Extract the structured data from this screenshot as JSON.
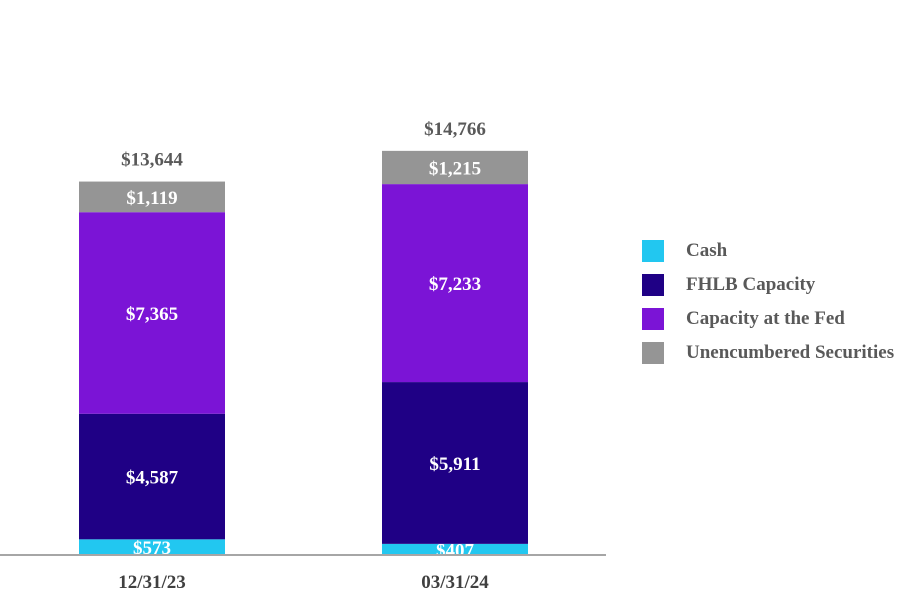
{
  "chart_data": {
    "type": "bar",
    "stacked": true,
    "title": "",
    "xlabel": "",
    "ylabel": "",
    "ylim": [
      0,
      16000
    ],
    "grid": false,
    "legend_position": "right",
    "categories": [
      "12/31/23",
      "03/31/24"
    ],
    "series": [
      {
        "name": "Cash",
        "color": "#22c7f0",
        "values": [
          573,
          407
        ],
        "labels": [
          "$573",
          "$407"
        ]
      },
      {
        "name": "FHLB Capacity",
        "color": "#1f0085",
        "values": [
          4587,
          5911
        ],
        "labels": [
          "$4,587",
          "$5,911"
        ]
      },
      {
        "name": "Capacity at the Fed",
        "color": "#7b14d6",
        "values": [
          7365,
          7233
        ],
        "labels": [
          "$7,365",
          "$7,233"
        ]
      },
      {
        "name": "Unencumbered Securities",
        "color": "#959595",
        "values": [
          1119,
          1215
        ],
        "labels": [
          "$1,119",
          "$1,215"
        ]
      }
    ],
    "totals": [
      13644,
      14766
    ],
    "total_labels": [
      "$13,644",
      "$14,766"
    ]
  },
  "colors": {
    "axis": "#a6a6a6",
    "total_text": "#595959",
    "category_text": "#404040",
    "segment_text": "#ffffff"
  }
}
